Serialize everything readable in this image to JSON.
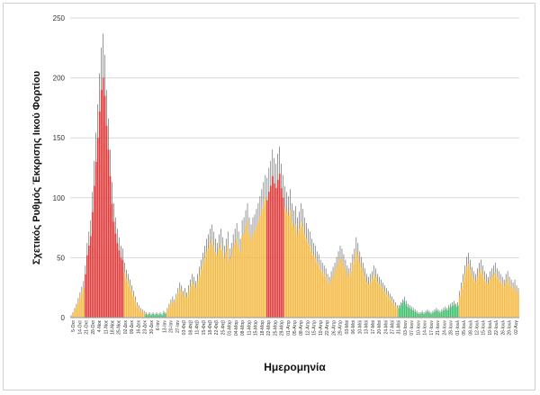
{
  "chart_data": {
    "type": "bar",
    "xlabel": "Ημερομηνία",
    "ylabel": "Σχετικός Ρυθμός Έκκρισης Ιικού Φορτίου",
    "ylim": [
      0,
      250
    ],
    "yticks": [
      0,
      50,
      100,
      150,
      200,
      250
    ],
    "grid": true,
    "legend": "none",
    "colors": {
      "orange": "#f5b942",
      "red": "#e03a3a",
      "green": "#3cbf6a"
    },
    "xtick_labels": [
      "5-Οκτ",
      "14-Οκτ",
      "21-Οκτ",
      "28-Οκτ",
      "4-Νοε",
      "11-Νοε",
      "18-Νοε",
      "25-Νοε",
      "02-Δεκ",
      "09-Δεκ",
      "16-Δεκ",
      "23-Δεκ",
      "30-Δεκ",
      "6-Ιαν",
      "13-Ιαν",
      "20-Ιαν",
      "27-Ιαν",
      "03-Φεβ",
      "08-Φεβ",
      "11-Φεβ",
      "15-Φεβ",
      "18-Φεβ",
      "22-Φεβ",
      "25-Φεβ",
      "01-Μαρ",
      "04-Μαρ",
      "08-Μαρ",
      "11-Μαρ",
      "15-Μαρ",
      "18-Μαρ",
      "22-Μαρ",
      "25-Μαρ",
      "29-Μαρ",
      "01-Απρ",
      "05-Απρ",
      "08-Απρ",
      "12-Απρ",
      "15-Απρ",
      "19-Απρ",
      "22-Απρ",
      "26-Απρ",
      "29-Απρ",
      "03-Μαϊ",
      "06-Μαϊ",
      "10-Μαϊ",
      "13-Μαϊ",
      "17-Μαϊ",
      "20-Μαϊ",
      "24-Μαϊ",
      "27-Μαϊ",
      "31-Μαϊ",
      "03-Ιουν",
      "07-Ιουν",
      "10-Ιουν",
      "14-Ιουν",
      "17-Ιουν",
      "21-Ιουν",
      "24-Ιουν",
      "28-Ιουν",
      "01-Ιουλ",
      "05-Ιουλ",
      "08-Ιουλ",
      "12-Ιουλ",
      "15-Ιουλ",
      "19-Ιουλ",
      "22-Ιουλ",
      "26-Ιουλ",
      "29-Ιουλ",
      "02-Αυγ"
    ],
    "segments": [
      {
        "color": "orange",
        "values": [
          1,
          3,
          6,
          9,
          13,
          17,
          21,
          25
        ]
      },
      {
        "color": "red",
        "values": [
          36,
          52,
          60,
          68,
          88,
          110,
          130,
          150,
          172,
          190,
          200,
          185,
          160,
          140,
          118,
          95,
          80,
          70,
          62,
          56,
          50,
          48
        ]
      },
      {
        "color": "orange",
        "values": [
          38,
          33,
          30,
          26,
          22,
          18,
          14,
          10,
          8,
          6,
          5,
          4
        ]
      },
      {
        "color": "green",
        "values": [
          3,
          2,
          3,
          2,
          3,
          2,
          3,
          2,
          3,
          2,
          4,
          3
        ]
      },
      {
        "color": "orange",
        "values": [
          6,
          9,
          12,
          14,
          12,
          16,
          20,
          24,
          22,
          18,
          20,
          17,
          22,
          26,
          30,
          28,
          25,
          30,
          35,
          40,
          45,
          50,
          55,
          58,
          62,
          65,
          60,
          55,
          52,
          58,
          62,
          56,
          50,
          55,
          60,
          48,
          52,
          58,
          62,
          66,
          60,
          55,
          68,
          70,
          75,
          80,
          70,
          65,
          70,
          72,
          76,
          80,
          85,
          90,
          95,
          100
        ]
      },
      {
        "color": "red",
        "values": [
          98,
          105,
          110,
          118,
          112,
          108,
          115,
          120,
          108,
          100
        ]
      },
      {
        "color": "orange",
        "values": [
          92,
          88,
          85,
          90,
          80,
          75,
          78,
          70,
          74,
          80,
          76,
          70,
          66,
          62,
          60,
          55,
          52,
          50,
          46,
          44,
          40,
          38,
          36,
          34,
          30,
          28,
          32,
          35,
          38,
          42,
          46,
          50,
          48,
          44,
          40,
          36,
          34,
          38,
          44,
          48,
          56,
          52,
          46,
          42,
          38,
          34,
          30,
          28,
          30,
          32,
          36,
          34,
          30,
          28,
          26,
          24,
          22,
          20,
          18,
          16,
          14,
          12,
          10,
          8
        ]
      },
      {
        "color": "green",
        "values": [
          8,
          10,
          12,
          14,
          11,
          9,
          8,
          7,
          6,
          5,
          4,
          3,
          3,
          4,
          3,
          4,
          5,
          4,
          3,
          4,
          5,
          6,
          5,
          4,
          5,
          6,
          7,
          6,
          8,
          9,
          10,
          11,
          9,
          10
        ]
      },
      {
        "color": "orange",
        "values": [
          18,
          24,
          30,
          36,
          42,
          45,
          40,
          35,
          32,
          30,
          34,
          38,
          40,
          36,
          32,
          30,
          28,
          32,
          34,
          36,
          38,
          34,
          32,
          30,
          28,
          26,
          30,
          32,
          28,
          26,
          24,
          26,
          22,
          20
        ]
      }
    ]
  }
}
